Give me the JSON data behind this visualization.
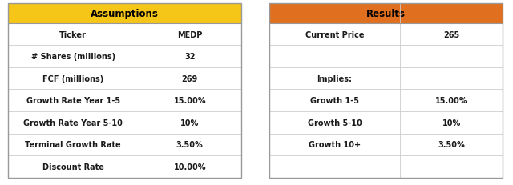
{
  "left_header": "Assumptions",
  "left_header_color": "#F5C518",
  "left_rows": [
    [
      "Ticker",
      "MEDP"
    ],
    [
      "# Shares (millions)",
      "32"
    ],
    [
      "FCF (millions)",
      "269"
    ],
    [
      "Growth Rate Year 1-5",
      "15.00%"
    ],
    [
      "Growth Rate Year 5-10",
      "10%"
    ],
    [
      "Terminal Growth Rate",
      "3.50%"
    ],
    [
      "Discount Rate",
      "10.00%"
    ]
  ],
  "right_header": "Results",
  "right_header_color": "#E07020",
  "right_rows": [
    [
      "Current Price",
      "265"
    ],
    [
      "",
      ""
    ],
    [
      "Implies:",
      ""
    ],
    [
      "Growth 1-5",
      "15.00%"
    ],
    [
      "Growth 5-10",
      "10%"
    ],
    [
      "Growth 10+",
      "3.50%"
    ],
    [
      "",
      ""
    ]
  ],
  "header_text_color": "#000000",
  "cell_text_color": "#1a1a1a",
  "border_color": "#999999",
  "bg_color": "#ffffff",
  "row_line_color": "#cccccc",
  "font_size": 7.0,
  "header_font_size": 8.5
}
